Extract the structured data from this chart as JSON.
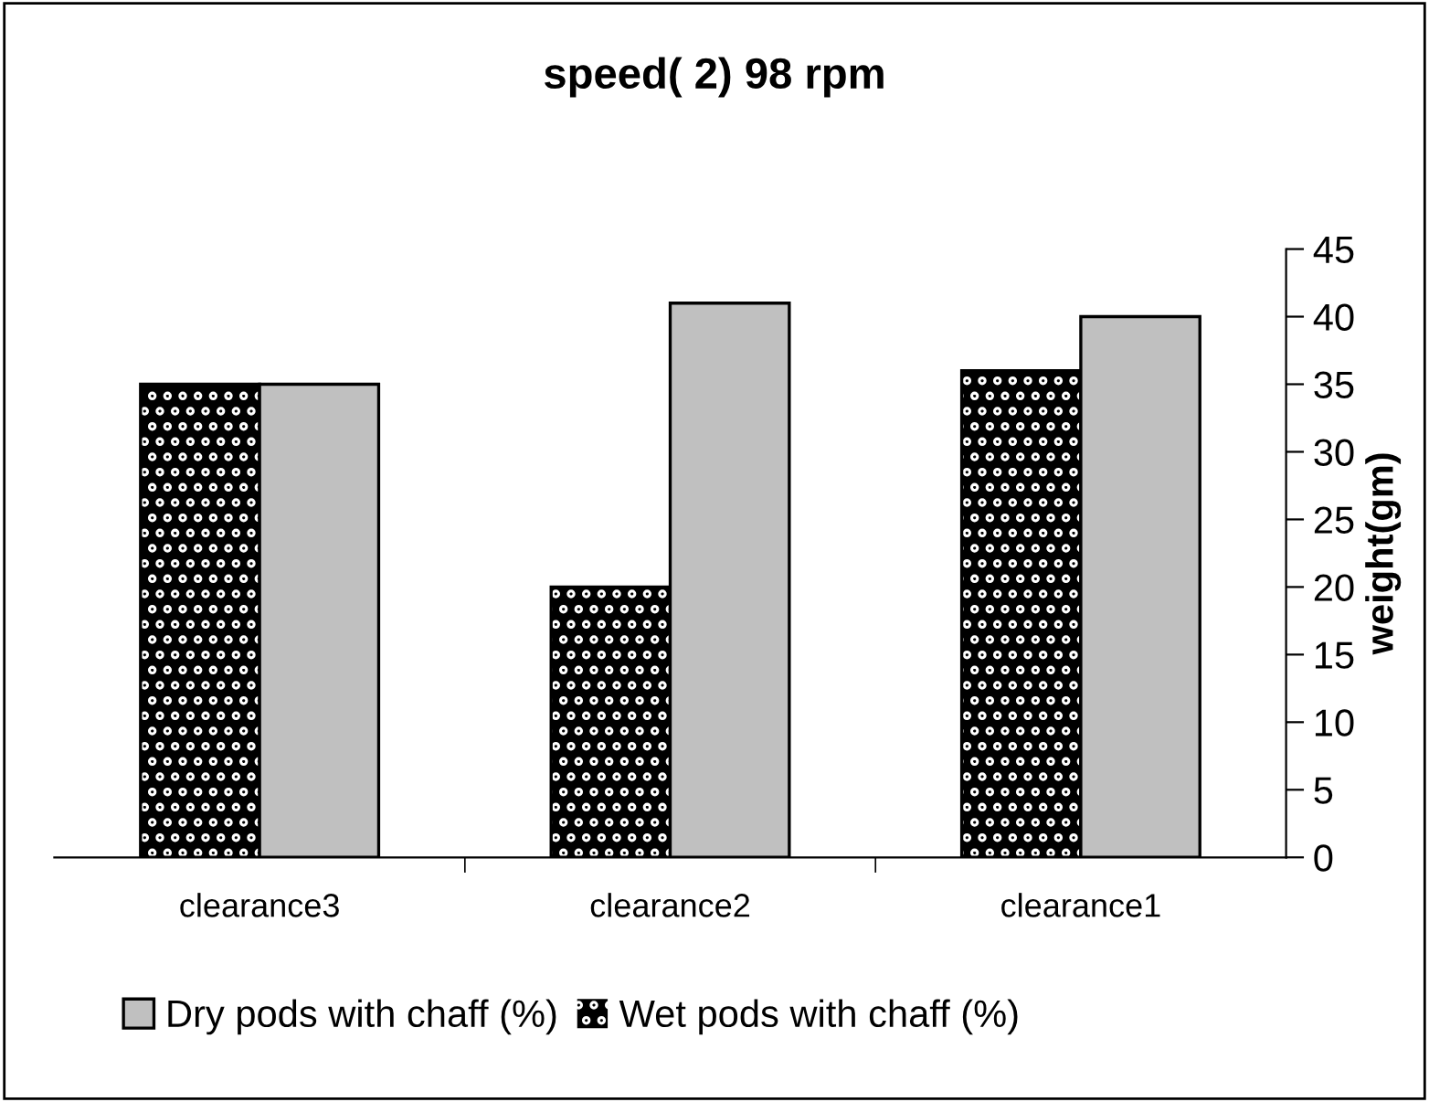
{
  "chart_data": {
    "type": "bar",
    "title": "speed( 2) 98 rpm",
    "ylabel": "weight(gm)",
    "categories": [
      "clearance3",
      "clearance2",
      "clearance1"
    ],
    "series": [
      {
        "name": "Wet pods with chaff (%)",
        "color": "#000000",
        "values": [
          35,
          20,
          36
        ]
      },
      {
        "name": "Dry pods with chaff (%)",
        "color": "#c0c0c0",
        "values": [
          35,
          41,
          40
        ]
      }
    ],
    "ylim": [
      0,
      45
    ],
    "yticks": [
      0,
      5,
      10,
      15,
      20,
      25,
      30,
      35,
      40,
      45
    ],
    "grid": false,
    "legend": "bottom"
  }
}
